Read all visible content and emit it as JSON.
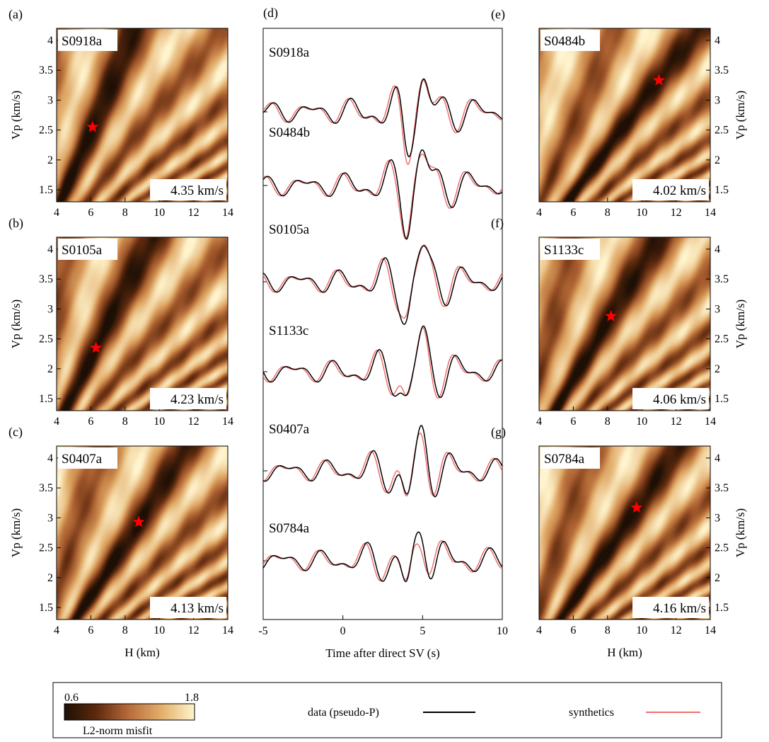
{
  "chart_data": {
    "misfit_panels": [
      {
        "id": "a",
        "label": "(a)",
        "event": "S0918a",
        "speed": "4.35 km/s",
        "best": {
          "H": 6.1,
          "Vp": 2.55
        },
        "side": "left",
        "row": 0
      },
      {
        "id": "b",
        "label": "(b)",
        "event": "S0105a",
        "speed": "4.23 km/s",
        "best": {
          "H": 6.3,
          "Vp": 2.35
        },
        "side": "left",
        "row": 1
      },
      {
        "id": "c",
        "label": "(c)",
        "event": "S0407a",
        "speed": "4.13 km/s",
        "best": {
          "H": 8.8,
          "Vp": 2.93
        },
        "side": "left",
        "row": 2
      },
      {
        "id": "e",
        "label": "(e)",
        "event": "S0484b",
        "speed": "4.02 km/s",
        "best": {
          "H": 11.0,
          "Vp": 3.33
        },
        "side": "right",
        "row": 0
      },
      {
        "id": "f",
        "label": "(f)",
        "event": "S1133c",
        "speed": "4.06 km/s",
        "best": {
          "H": 8.2,
          "Vp": 2.88
        },
        "side": "right",
        "row": 1
      },
      {
        "id": "g",
        "label": "(g)",
        "event": "S0784a",
        "speed": "4.16 km/s",
        "best": {
          "H": 9.7,
          "Vp": 3.17
        },
        "side": "right",
        "row": 2
      }
    ],
    "heatmap_axes": {
      "xlabel": "H (km)",
      "ylabel": "Vp (km/s)",
      "xlim": [
        4,
        14
      ],
      "ylim": [
        1.3,
        4.2
      ],
      "xticks": [
        "4",
        "6",
        "8",
        "10",
        "12",
        "14"
      ],
      "yticks": [
        "1.5",
        "2",
        "2.5",
        "3",
        "3.5",
        "4"
      ]
    },
    "waveforms": {
      "label": "(d)",
      "xlabel": "Time after direct SV (s)",
      "xlim": [
        -5,
        10
      ],
      "xticks": [
        "-5",
        "0",
        "5",
        "10"
      ],
      "traces": [
        "S0918a",
        "S0484b",
        "S0105a",
        "S1133c",
        "S0407a",
        "S0784a"
      ]
    },
    "colorbar": {
      "min": "0.6",
      "max": "1.8",
      "label": "L2-norm misfit"
    },
    "legend": [
      {
        "name": "data (pseudo-P)",
        "color": "#000000"
      },
      {
        "name": "synthetics",
        "color": "#f07070"
      }
    ]
  },
  "colors": {
    "marker": "#ff0000",
    "synthetic": "#f07070",
    "data": "#000000"
  }
}
